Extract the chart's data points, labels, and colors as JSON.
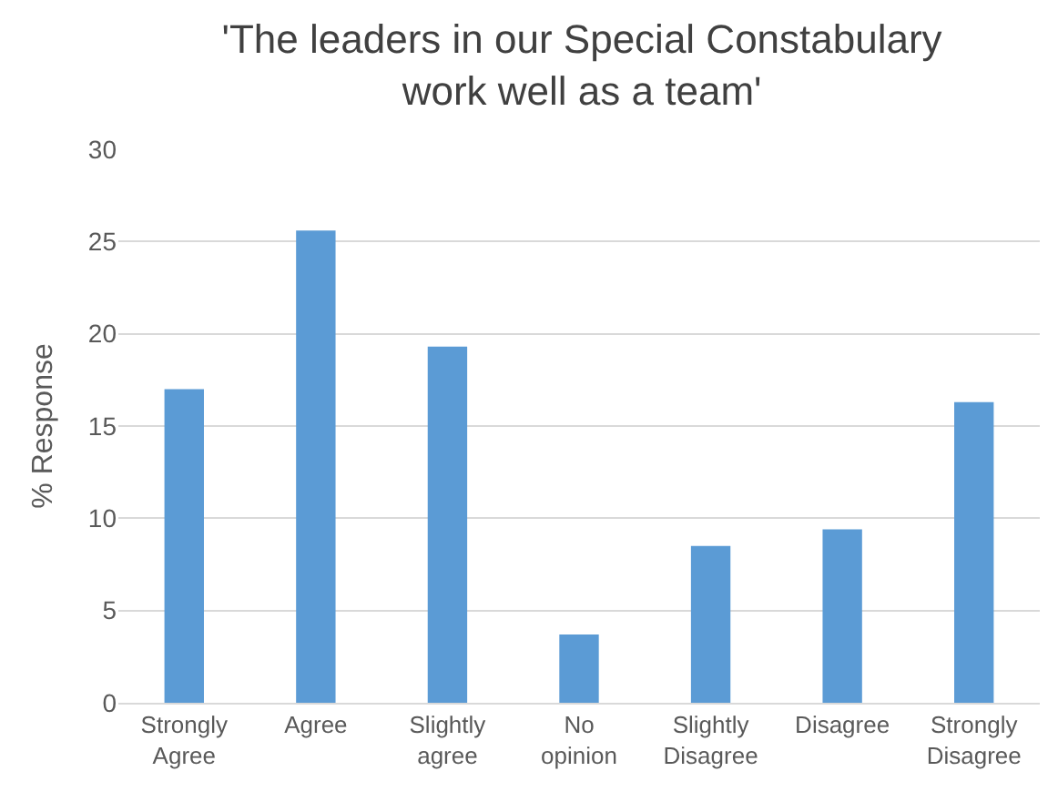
{
  "chart_data": {
    "type": "bar",
    "title": "'The leaders in our Special Constabulary\nwork well as a team'",
    "ylabel": "% Response",
    "categories": [
      "Strongly\nAgree",
      "Agree",
      "Slightly\nagree",
      "No\nopinion",
      "Slightly\nDisagree",
      "Disagree",
      "Strongly\nDisagree"
    ],
    "values": [
      17.0,
      25.6,
      19.3,
      3.7,
      8.5,
      9.4,
      16.3
    ],
    "color": "#5b9bd5",
    "ylim": [
      0,
      30
    ],
    "yticks": [
      0,
      5,
      10,
      15,
      20,
      25,
      30
    ],
    "grid": "y",
    "legend": false
  }
}
